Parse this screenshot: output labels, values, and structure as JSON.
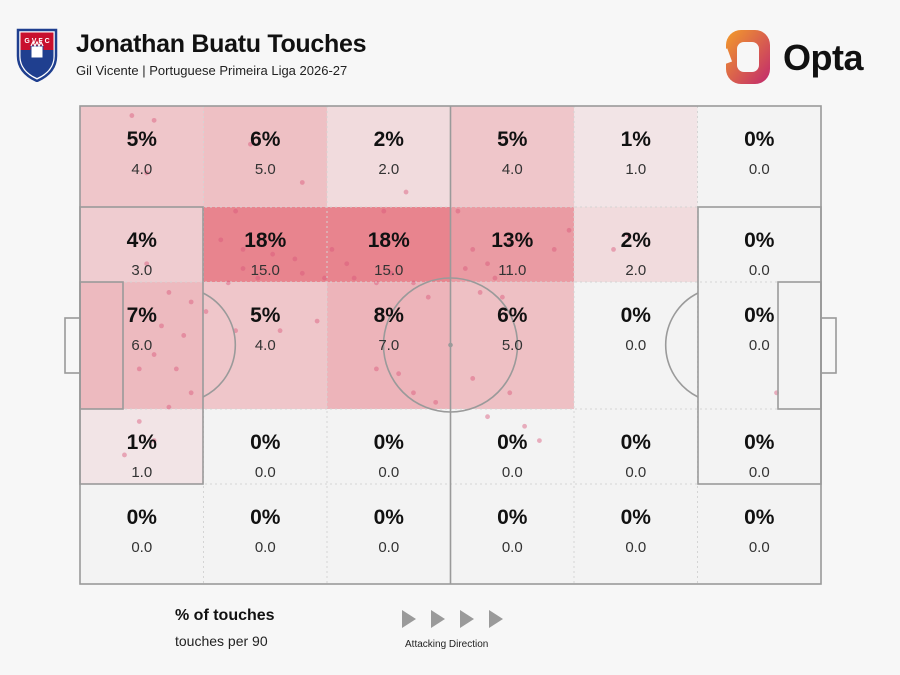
{
  "header": {
    "title": "Jonathan Buatu Touches",
    "subtitle": "Gil Vicente | Portuguese Primeira Liga 2026-27",
    "crest_text": "G V F C",
    "opta_label": "Opta"
  },
  "colors": {
    "heat_max": "#e8848e",
    "pitch_line": "#9a9a9a",
    "dot": "#d9577a",
    "opta_orange": "#f39c2a",
    "opta_magenta": "#c1286e"
  },
  "legend": {
    "pct_label": "% of touches",
    "per90_label": "touches per 90",
    "direction_label": "Attacking Direction"
  },
  "chart_data": {
    "type": "heatmap",
    "title": "Jonathan Buatu Touches",
    "subtitle": "Gil Vicente | Portuguese Primeira Liga 2026-27",
    "columns": 6,
    "rows": 5,
    "cells": [
      {
        "row": 0,
        "col": 0,
        "pct": "5%",
        "per90": "4.0",
        "share": 5
      },
      {
        "row": 0,
        "col": 1,
        "pct": "6%",
        "per90": "5.0",
        "share": 6
      },
      {
        "row": 0,
        "col": 2,
        "pct": "2%",
        "per90": "2.0",
        "share": 2
      },
      {
        "row": 0,
        "col": 3,
        "pct": "5%",
        "per90": "4.0",
        "share": 5
      },
      {
        "row": 0,
        "col": 4,
        "pct": "1%",
        "per90": "1.0",
        "share": 1
      },
      {
        "row": 0,
        "col": 5,
        "pct": "0%",
        "per90": "0.0",
        "share": 0
      },
      {
        "row": 1,
        "col": 0,
        "pct": "4%",
        "per90": "3.0",
        "share": 4
      },
      {
        "row": 1,
        "col": 1,
        "pct": "18%",
        "per90": "15.0",
        "share": 18
      },
      {
        "row": 1,
        "col": 2,
        "pct": "18%",
        "per90": "15.0",
        "share": 18
      },
      {
        "row": 1,
        "col": 3,
        "pct": "13%",
        "per90": "11.0",
        "share": 13
      },
      {
        "row": 1,
        "col": 4,
        "pct": "2%",
        "per90": "2.0",
        "share": 2
      },
      {
        "row": 1,
        "col": 5,
        "pct": "0%",
        "per90": "0.0",
        "share": 0
      },
      {
        "row": 2,
        "col": 0,
        "pct": "7%",
        "per90": "6.0",
        "share": 7
      },
      {
        "row": 2,
        "col": 1,
        "pct": "5%",
        "per90": "4.0",
        "share": 5
      },
      {
        "row": 2,
        "col": 2,
        "pct": "8%",
        "per90": "7.0",
        "share": 8
      },
      {
        "row": 2,
        "col": 3,
        "pct": "6%",
        "per90": "5.0",
        "share": 6
      },
      {
        "row": 2,
        "col": 4,
        "pct": "0%",
        "per90": "0.0",
        "share": 0
      },
      {
        "row": 2,
        "col": 5,
        "pct": "0%",
        "per90": "0.0",
        "share": 0
      },
      {
        "row": 3,
        "col": 0,
        "pct": "1%",
        "per90": "1.0",
        "share": 1
      },
      {
        "row": 3,
        "col": 1,
        "pct": "0%",
        "per90": "0.0",
        "share": 0
      },
      {
        "row": 3,
        "col": 2,
        "pct": "0%",
        "per90": "0.0",
        "share": 0
      },
      {
        "row": 3,
        "col": 3,
        "pct": "0%",
        "per90": "0.0",
        "share": 0
      },
      {
        "row": 3,
        "col": 4,
        "pct": "0%",
        "per90": "0.0",
        "share": 0
      },
      {
        "row": 3,
        "col": 5,
        "pct": "0%",
        "per90": "0.0",
        "share": 0
      },
      {
        "row": 4,
        "col": 0,
        "pct": "0%",
        "per90": "0.0",
        "share": 0
      },
      {
        "row": 4,
        "col": 1,
        "pct": "0%",
        "per90": "0.0",
        "share": 0
      },
      {
        "row": 4,
        "col": 2,
        "pct": "0%",
        "per90": "0.0",
        "share": 0
      },
      {
        "row": 4,
        "col": 3,
        "pct": "0%",
        "per90": "0.0",
        "share": 0
      },
      {
        "row": 4,
        "col": 4,
        "pct": "0%",
        "per90": "0.0",
        "share": 0
      },
      {
        "row": 4,
        "col": 5,
        "pct": "0%",
        "per90": "0.0",
        "share": 0
      }
    ],
    "touch_points": [
      [
        0.07,
        0.02
      ],
      [
        0.1,
        0.03
      ],
      [
        0.09,
        0.14
      ],
      [
        0.3,
        0.16
      ],
      [
        0.23,
        0.08
      ],
      [
        0.44,
        0.18
      ],
      [
        0.41,
        0.22
      ],
      [
        0.21,
        0.22
      ],
      [
        0.19,
        0.28
      ],
      [
        0.22,
        0.3
      ],
      [
        0.26,
        0.31
      ],
      [
        0.29,
        0.32
      ],
      [
        0.34,
        0.3
      ],
      [
        0.36,
        0.33
      ],
      [
        0.22,
        0.34
      ],
      [
        0.2,
        0.37
      ],
      [
        0.24,
        0.36
      ],
      [
        0.3,
        0.35
      ],
      [
        0.33,
        0.36
      ],
      [
        0.37,
        0.36
      ],
      [
        0.4,
        0.37
      ],
      [
        0.42,
        0.35
      ],
      [
        0.45,
        0.37
      ],
      [
        0.47,
        0.4
      ],
      [
        0.51,
        0.22
      ],
      [
        0.53,
        0.3
      ],
      [
        0.52,
        0.34
      ],
      [
        0.55,
        0.33
      ],
      [
        0.56,
        0.36
      ],
      [
        0.54,
        0.39
      ],
      [
        0.57,
        0.4
      ],
      [
        0.58,
        0.29
      ],
      [
        0.64,
        0.3
      ],
      [
        0.66,
        0.26
      ],
      [
        0.72,
        0.3
      ],
      [
        0.74,
        0.27
      ],
      [
        0.09,
        0.33
      ],
      [
        0.12,
        0.39
      ],
      [
        0.15,
        0.41
      ],
      [
        0.17,
        0.43
      ],
      [
        0.11,
        0.46
      ],
      [
        0.14,
        0.48
      ],
      [
        0.1,
        0.52
      ],
      [
        0.08,
        0.55
      ],
      [
        0.13,
        0.55
      ],
      [
        0.15,
        0.6
      ],
      [
        0.12,
        0.63
      ],
      [
        0.08,
        0.66
      ],
      [
        0.1,
        0.7
      ],
      [
        0.21,
        0.47
      ],
      [
        0.27,
        0.47
      ],
      [
        0.32,
        0.45
      ],
      [
        0.4,
        0.55
      ],
      [
        0.43,
        0.56
      ],
      [
        0.45,
        0.6
      ],
      [
        0.48,
        0.62
      ],
      [
        0.53,
        0.57
      ],
      [
        0.55,
        0.65
      ],
      [
        0.58,
        0.6
      ],
      [
        0.6,
        0.67
      ],
      [
        0.62,
        0.7
      ],
      [
        0.06,
        0.73
      ],
      [
        0.94,
        0.6
      ]
    ]
  }
}
